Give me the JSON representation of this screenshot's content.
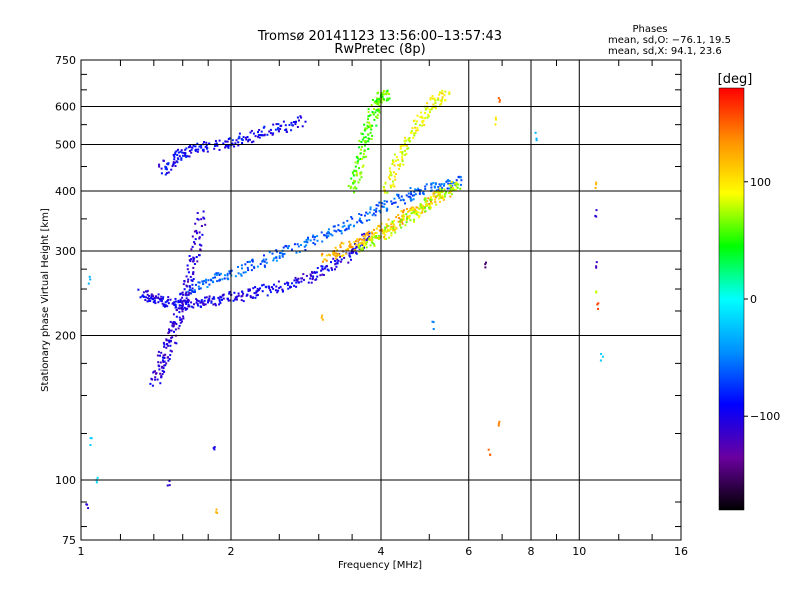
{
  "chart_data": {
    "type": "scatter",
    "title": "Tromsø 20141123 13:56:00–13:57:43",
    "subtitle": "RwPretec (8p)",
    "xlabel": "Frequency [MHz]",
    "ylabel": "Stationary phase Virtual Height [km]",
    "x_scale": "log",
    "y_scale": "log",
    "xlim": [
      1,
      16
    ],
    "ylim": [
      75,
      750
    ],
    "x_ticks": [
      1,
      2,
      4,
      6,
      8,
      10,
      16
    ],
    "x_tick_labels": [
      "1",
      "2",
      "4",
      "6",
      "8",
      "10",
      "16"
    ],
    "y_ticks": [
      75,
      100,
      200,
      300,
      400,
      500,
      600,
      750
    ],
    "y_tick_labels": [
      "75",
      "100",
      "200",
      "300",
      "400",
      "500",
      "600",
      "750"
    ],
    "grid": true,
    "colorbar": {
      "title": "[deg]",
      "range": [
        -180,
        180
      ],
      "ticks": [
        100,
        0,
        -100
      ],
      "tick_labels": [
        "100",
        "0",
        "−100"
      ],
      "colors": [
        "#000000",
        "#6a00a0",
        "#0000ff",
        "#0090ff",
        "#00ffff",
        "#00ff00",
        "#ffff00",
        "#ff9000",
        "#ff0000"
      ]
    },
    "stats": {
      "header": "Phases",
      "line1": "mean, sd,O: −76.1, 19.5",
      "line2": "mean, sd,X:  94.1, 23.6"
    },
    "traces": [
      {
        "name": "",
        "x": [
          1.32,
          1.4,
          1.5,
          1.6,
          1.75,
          1.9,
          2.1,
          2.3,
          2.6,
          2.9,
          3.2,
          3.5,
          3.8
        ],
        "y": [
          245,
          238,
          235,
          232,
          235,
          238,
          242,
          248,
          255,
          265,
          280,
          298,
          322
        ],
        "phase": -100
      },
      {
        "name": "",
        "x": [
          1.6,
          1.8,
          2.0,
          2.3,
          2.6,
          3.0,
          3.4,
          3.8,
          4.3,
          4.8,
          5.3,
          5.8
        ],
        "y": [
          245,
          258,
          270,
          285,
          300,
          318,
          338,
          360,
          382,
          400,
          412,
          420
        ],
        "phase": -60
      },
      {
        "name": "",
        "x": [
          3.1,
          3.3,
          3.6,
          3.9,
          4.2,
          4.6,
          5.0,
          5.5
        ],
        "y": [
          290,
          300,
          312,
          325,
          340,
          360,
          380,
          400
        ],
        "phase": 120
      },
      {
        "name": "",
        "x": [
          3.6,
          3.9,
          4.3,
          4.7,
          5.0,
          5.4,
          5.7
        ],
        "y": [
          300,
          318,
          338,
          360,
          380,
          400,
          410
        ],
        "phase": 80
      },
      {
        "name": "",
        "x": [
          1.45,
          1.55,
          1.65,
          1.8,
          2.0,
          2.2,
          2.5,
          2.8
        ],
        "y": [
          440,
          470,
          485,
          495,
          505,
          520,
          540,
          560
        ],
        "phase": -95
      },
      {
        "name": "",
        "x": [
          3.5,
          3.6,
          3.7,
          3.8,
          3.9,
          4.0,
          4.1
        ],
        "y": [
          400,
          450,
          500,
          550,
          600,
          630,
          640
        ],
        "phase": 60
      },
      {
        "name": "",
        "x": [
          4.1,
          4.3,
          4.5,
          4.8,
          5.1,
          5.4
        ],
        "y": [
          400,
          450,
          500,
          560,
          610,
          640
        ],
        "phase": 90
      },
      {
        "name": "",
        "x": [
          1.4,
          1.45,
          1.5,
          1.55,
          1.6,
          1.65,
          1.7,
          1.75
        ],
        "y": [
          160,
          175,
          190,
          210,
          230,
          260,
          300,
          360
        ],
        "phase": -110
      }
    ],
    "scattered_points": [
      {
        "x": 1.05,
        "y": 120,
        "phase": -20
      },
      {
        "x": 1.08,
        "y": 100,
        "phase": -15
      },
      {
        "x": 1.03,
        "y": 88,
        "phase": -110
      },
      {
        "x": 1.04,
        "y": 260,
        "phase": -30
      },
      {
        "x": 1.5,
        "y": 98,
        "phase": -110
      },
      {
        "x": 1.85,
        "y": 115,
        "phase": -100
      },
      {
        "x": 1.87,
        "y": 87,
        "phase": 120
      },
      {
        "x": 3.05,
        "y": 220,
        "phase": 120
      },
      {
        "x": 5.1,
        "y": 210,
        "phase": -50
      },
      {
        "x": 6.5,
        "y": 280,
        "phase": -150
      },
      {
        "x": 6.6,
        "y": 115,
        "phase": 150
      },
      {
        "x": 6.9,
        "y": 130,
        "phase": 140
      },
      {
        "x": 10.8,
        "y": 410,
        "phase": 120
      },
      {
        "x": 10.8,
        "y": 360,
        "phase": -110
      },
      {
        "x": 10.8,
        "y": 280,
        "phase": -120
      },
      {
        "x": 10.8,
        "y": 250,
        "phase": 80
      },
      {
        "x": 10.9,
        "y": 230,
        "phase": 160
      },
      {
        "x": 11.1,
        "y": 180,
        "phase": -20
      },
      {
        "x": 8.2,
        "y": 520,
        "phase": -30
      },
      {
        "x": 6.9,
        "y": 620,
        "phase": 150
      },
      {
        "x": 6.8,
        "y": 560,
        "phase": 100
      }
    ]
  }
}
